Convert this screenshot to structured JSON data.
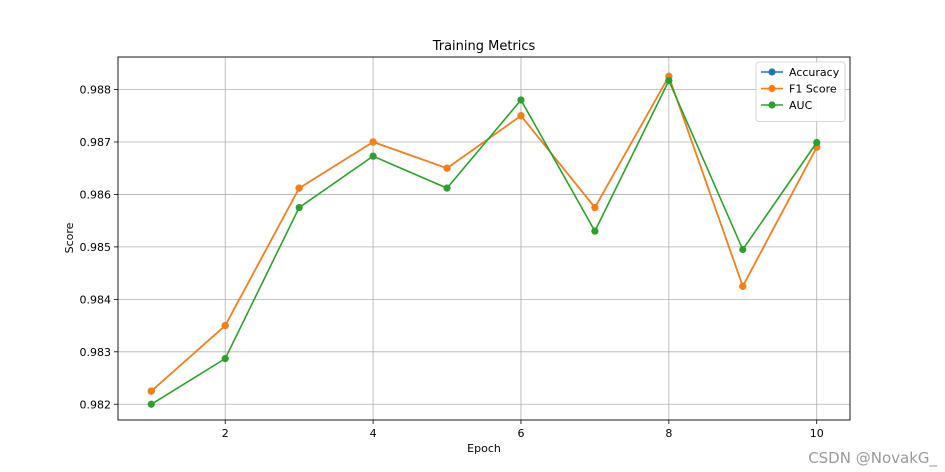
{
  "chart_data": {
    "type": "line",
    "title": "Training Metrics",
    "xlabel": "Epoch",
    "ylabel": "Score",
    "x": [
      1,
      2,
      3,
      4,
      5,
      6,
      7,
      8,
      9,
      10
    ],
    "xticks": [
      2,
      4,
      6,
      8,
      10
    ],
    "xlim": [
      0.55,
      10.45
    ],
    "ylim": [
      0.9817,
      0.98862
    ],
    "yticks": [
      0.982,
      0.983,
      0.984,
      0.985,
      0.986,
      0.987,
      0.988
    ],
    "ytick_labels": [
      "0.982",
      "0.983",
      "0.984",
      "0.985",
      "0.986",
      "0.987",
      "0.988"
    ],
    "grid": true,
    "legend_position": "top-right",
    "series": [
      {
        "name": "Accuracy",
        "color": "#1f77b4",
        "values": [
          0.98225,
          0.9835,
          0.98612,
          0.987,
          0.9865,
          0.9875,
          0.98575,
          0.98825,
          0.98425,
          0.9869
        ]
      },
      {
        "name": "F1 Score",
        "color": "#ff7f0e",
        "values": [
          0.98225,
          0.9835,
          0.98612,
          0.987,
          0.9865,
          0.9875,
          0.98575,
          0.98825,
          0.98425,
          0.9869
        ]
      },
      {
        "name": "AUC",
        "color": "#2ca02c",
        "values": [
          0.982,
          0.98287,
          0.98575,
          0.98673,
          0.98612,
          0.9878,
          0.9853,
          0.98817,
          0.98495,
          0.98699
        ]
      }
    ]
  },
  "watermark": "CSDN @NovakG_"
}
